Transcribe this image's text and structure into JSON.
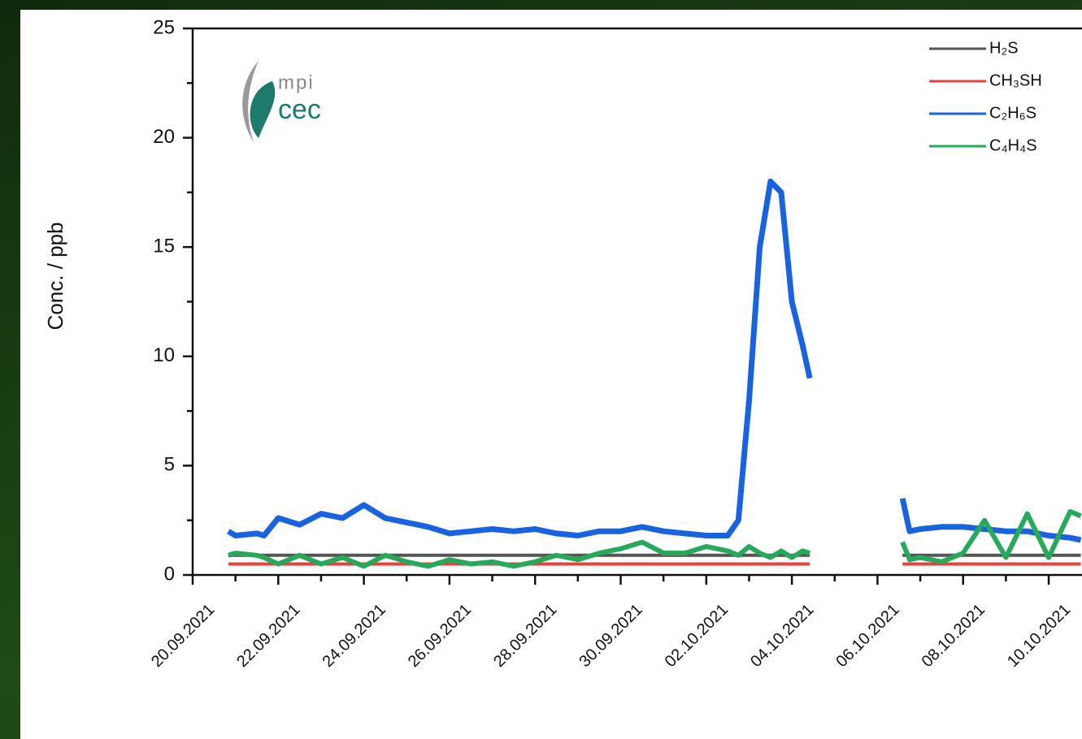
{
  "chart_data": {
    "type": "line",
    "y_label": "Conc. / ppb",
    "logo_text": [
      "mpi",
      "cec"
    ],
    "x": [
      "20.09.2021 20:00",
      "21.09.2021 00:00",
      "21.09.2021 12:00",
      "21.09.2021 16:00",
      "22.09.2021 00:00",
      "22.09.2021 12:00",
      "23.09.2021 00:00",
      "23.09.2021 12:00",
      "24.09.2021 00:00",
      "24.09.2021 12:00",
      "25.09.2021 00:00",
      "25.09.2021 12:00",
      "26.09.2021 00:00",
      "26.09.2021 12:00",
      "27.09.2021 00:00",
      "27.09.2021 12:00",
      "28.09.2021 00:00",
      "28.09.2021 12:00",
      "29.09.2021 00:00",
      "29.09.2021 12:00",
      "30.09.2021 00:00",
      "30.09.2021 12:00",
      "01.10.2021 00:00",
      "01.10.2021 12:00",
      "02.10.2021 00:00",
      "02.10.2021 12:00",
      "02.10.2021 18:00",
      "03.10.2021 00:00",
      "03.10.2021 06:00",
      "03.10.2021 12:00",
      "03.10.2021 18:00",
      "04.10.2021 00:00",
      "04.10.2021 06:00",
      "04.10.2021 10:00",
      "05.10.2021 00:00",
      "06.10.2021 14:00",
      "06.10.2021 18:00",
      "07.10.2021 00:00",
      "07.10.2021 12:00",
      "08.10.2021 00:00",
      "08.10.2021 12:00",
      "09.10.2021 00:00",
      "09.10.2021 12:00",
      "10.10.2021 00:00",
      "10.10.2021 12:00",
      "10.10.2021 18:00"
    ],
    "series": [
      {
        "name": "H₂S",
        "color": "#555555",
        "width": 4,
        "values": [
          0.9,
          0.9,
          0.9,
          0.9,
          0.9,
          0.9,
          0.9,
          0.9,
          0.9,
          0.9,
          0.9,
          0.9,
          0.9,
          0.9,
          0.9,
          0.9,
          0.9,
          0.9,
          0.9,
          0.9,
          0.9,
          0.9,
          0.9,
          0.9,
          0.9,
          0.9,
          0.9,
          0.9,
          0.9,
          0.9,
          0.9,
          0.9,
          0.9,
          0.9,
          null,
          0.9,
          0.9,
          0.9,
          0.9,
          0.9,
          0.9,
          0.9,
          0.9,
          0.9,
          0.9,
          0.9
        ]
      },
      {
        "name": "CH₃SH",
        "color": "#e8403a",
        "width": 4,
        "values": [
          0.5,
          0.5,
          0.5,
          0.5,
          0.5,
          0.5,
          0.5,
          0.5,
          0.5,
          0.5,
          0.5,
          0.5,
          0.5,
          0.5,
          0.5,
          0.5,
          0.5,
          0.5,
          0.5,
          0.5,
          0.5,
          0.5,
          0.5,
          0.5,
          0.5,
          0.5,
          0.5,
          0.5,
          0.5,
          0.5,
          0.5,
          0.5,
          0.5,
          0.5,
          null,
          0.5,
          0.5,
          0.5,
          0.5,
          0.5,
          0.5,
          0.5,
          0.5,
          0.5,
          0.5,
          0.5
        ]
      },
      {
        "name": "C₂H₆S",
        "color": "#1a63e0",
        "width": 7,
        "values": [
          2.0,
          1.8,
          1.9,
          1.8,
          2.6,
          2.3,
          2.8,
          2.6,
          3.2,
          2.6,
          2.4,
          2.2,
          1.9,
          2.0,
          2.1,
          2.0,
          2.1,
          1.9,
          1.8,
          2.0,
          2.0,
          2.2,
          2.0,
          1.9,
          1.8,
          1.8,
          2.5,
          8,
          15,
          18,
          17.5,
          12.5,
          10.5,
          9,
          null,
          3.5,
          2.0,
          2.1,
          2.2,
          2.2,
          2.1,
          2.0,
          2.0,
          1.8,
          1.7,
          1.6
        ]
      },
      {
        "name": "C₄H₄S",
        "color": "#27a85a",
        "width": 6,
        "values": [
          0.9,
          1.0,
          0.9,
          0.8,
          0.5,
          0.9,
          0.5,
          0.8,
          0.4,
          0.9,
          0.6,
          0.4,
          0.7,
          0.5,
          0.6,
          0.4,
          0.6,
          0.9,
          0.7,
          1.0,
          1.2,
          1.5,
          1.0,
          1.0,
          1.3,
          1.1,
          0.9,
          1.3,
          1.0,
          0.8,
          1.1,
          0.8,
          1.1,
          1.0,
          null,
          1.5,
          0.7,
          0.8,
          0.6,
          1.0,
          2.5,
          0.8,
          2.8,
          0.8,
          2.9,
          2.7
        ]
      }
    ],
    "xlim": [
      "20.09.2021 00:00",
      "10.10.2021 18:40"
    ],
    "xticks": [
      "20.09.2021",
      "22.09.2021",
      "24.09.2021",
      "26.09.2021",
      "28.09.2021",
      "30.09.2021",
      "02.10.2021",
      "04.10.2021",
      "06.10.2021",
      "08.10.2021",
      "10.10.2021"
    ],
    "ylim": [
      0,
      25
    ],
    "yticks": [
      0,
      5,
      10,
      15,
      20,
      25
    ],
    "minor_ticks": true,
    "legend": "upper right"
  }
}
